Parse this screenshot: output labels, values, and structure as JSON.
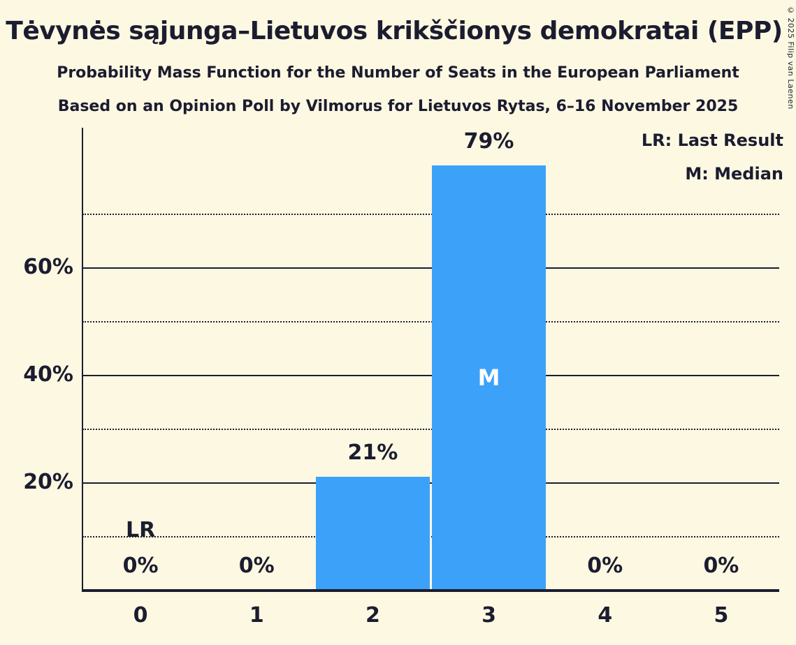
{
  "chart_data": {
    "type": "bar",
    "title": "Tėvynės sąjunga–Lietuvos krikščionys demokratai (EPP)",
    "subtitle1": "Probability Mass Function for the Number of Seats in the European Parliament",
    "subtitle2": "Based on an Opinion Poll by Vilmorus for Lietuvos Rytas, 6–16 November 2025",
    "categories": [
      "0",
      "1",
      "2",
      "3",
      "4",
      "5"
    ],
    "values": [
      0,
      0,
      21,
      79,
      0,
      0
    ],
    "bar_labels": [
      "0%",
      "0%",
      "21%",
      "79%",
      "0%",
      "0%"
    ],
    "xlabel": "",
    "ylabel": "",
    "ylim": [
      0,
      86
    ],
    "ytick_labels": [
      "20%",
      "40%",
      "60%"
    ],
    "solid_gridlines": [
      20,
      40,
      60
    ],
    "dotted_gridlines": [
      10,
      30,
      50,
      70
    ],
    "median_seat": "3",
    "median_marker": "M",
    "last_result_seat": "0",
    "last_result_marker": "LR",
    "legend": {
      "lr": "LR: Last Result",
      "m": "M: Median"
    },
    "colors": {
      "bar": "#3CA1F8",
      "background": "#FCF8E2",
      "text": "#1c1c30",
      "median_text": "#ffffff"
    },
    "copyright": "© 2025 Filip van Laenen"
  }
}
